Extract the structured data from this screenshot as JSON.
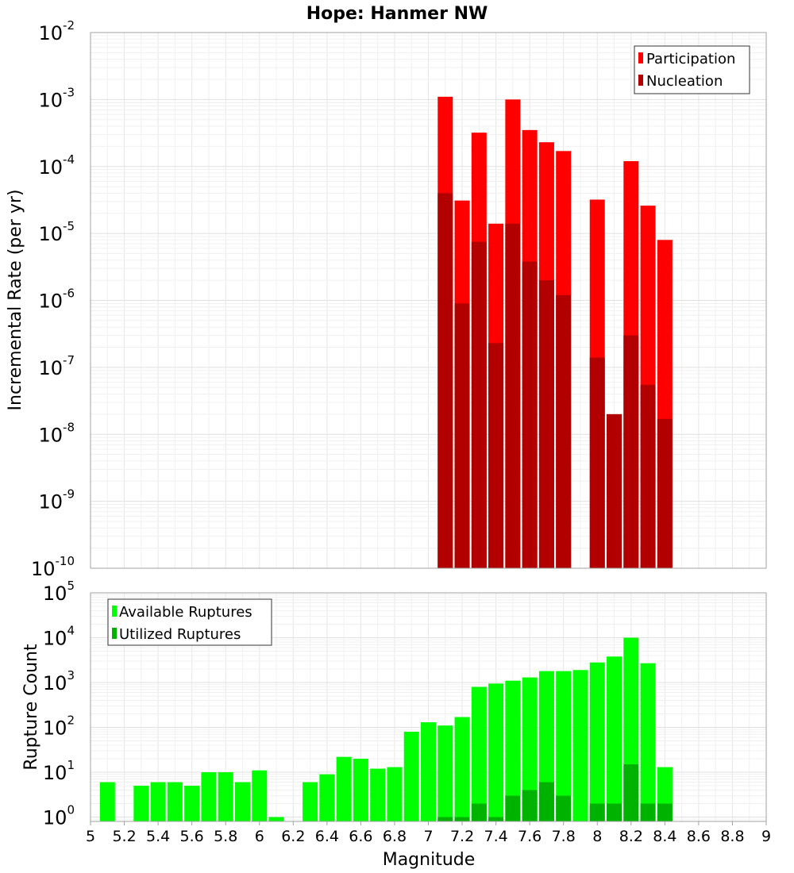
{
  "chart_data": [
    {
      "type": "bar",
      "title": "Hope: Hanmer NW",
      "ylabel": "Incremental Rate (per yr)",
      "xlabel": "",
      "xlim": [
        5,
        9
      ],
      "ylim": [
        1e-10,
        0.01
      ],
      "yscale": "log",
      "grid": true,
      "legend": "top-right",
      "x": [
        7.1,
        7.2,
        7.3,
        7.4,
        7.5,
        7.6,
        7.7,
        7.8,
        8.0,
        8.1,
        8.2,
        8.3,
        8.4
      ],
      "series": [
        {
          "name": "Participation",
          "color": "#ff0000",
          "values": [
            0.0011,
            3.1e-05,
            0.00032,
            1.4e-05,
            0.001,
            0.00035,
            0.00023,
            0.00017,
            3.2e-05,
            null,
            0.00012,
            2.6e-05,
            8e-06
          ]
        },
        {
          "name": "Nucleation",
          "color": "#b20000",
          "values": [
            4e-05,
            9e-07,
            7.5e-06,
            2.3e-07,
            1.4e-05,
            3.8e-06,
            2e-06,
            1.2e-06,
            1.4e-07,
            2e-08,
            3e-07,
            5.5e-08,
            1.7e-08
          ]
        }
      ]
    },
    {
      "type": "bar",
      "title": "",
      "ylabel": "Rupture Count",
      "xlabel": "Magnitude",
      "xlim": [
        5,
        9
      ],
      "ylim": [
        0.8,
        100000
      ],
      "yscale": "log",
      "grid": true,
      "legend": "top-left",
      "x": [
        5.1,
        5.2,
        5.3,
        5.4,
        5.5,
        5.6,
        5.7,
        5.8,
        5.9,
        6.0,
        6.1,
        6.2,
        6.3,
        6.4,
        6.5,
        6.6,
        6.7,
        6.8,
        6.9,
        7.0,
        7.1,
        7.2,
        7.3,
        7.4,
        7.5,
        7.6,
        7.7,
        7.8,
        7.9,
        8.0,
        8.1,
        8.2,
        8.3,
        8.4
      ],
      "series": [
        {
          "name": "Available Ruptures",
          "color": "#00ff00",
          "values": [
            6,
            null,
            5,
            6,
            6,
            5,
            10,
            10,
            6,
            11,
            1,
            null,
            6,
            9,
            22,
            20,
            12,
            13,
            80,
            130,
            110,
            170,
            800,
            950,
            1100,
            1300,
            1800,
            1800,
            1900,
            2800,
            3800,
            10000,
            2700,
            13
          ]
        },
        {
          "name": "Utilized Ruptures",
          "color": "#00b200",
          "values": [
            null,
            null,
            null,
            null,
            null,
            null,
            null,
            null,
            null,
            null,
            null,
            null,
            null,
            null,
            null,
            null,
            null,
            null,
            null,
            null,
            1,
            1,
            2,
            1,
            3,
            4,
            6,
            3,
            null,
            2,
            2,
            15,
            2,
            2
          ]
        }
      ]
    }
  ],
  "x_ticks": [
    "5",
    "5.2",
    "5.4",
    "5.6",
    "5.8",
    "6",
    "6.2",
    "6.4",
    "6.6",
    "6.8",
    "7",
    "7.2",
    "7.4",
    "7.6",
    "7.8",
    "8",
    "8.2",
    "8.4",
    "8.6",
    "8.8",
    "9"
  ],
  "top_y_ticks": [
    {
      "base": "10",
      "exp": "-2"
    },
    {
      "base": "10",
      "exp": "-3"
    },
    {
      "base": "10",
      "exp": "-4"
    },
    {
      "base": "10",
      "exp": "-5"
    },
    {
      "base": "10",
      "exp": "-6"
    },
    {
      "base": "10",
      "exp": "-7"
    },
    {
      "base": "10",
      "exp": "-8"
    },
    {
      "base": "10",
      "exp": "-9"
    },
    {
      "base": "10",
      "exp": "-10"
    }
  ],
  "bottom_y_ticks": [
    {
      "base": "10",
      "exp": "5"
    },
    {
      "base": "10",
      "exp": "4"
    },
    {
      "base": "10",
      "exp": "3"
    },
    {
      "base": "10",
      "exp": "2"
    },
    {
      "base": "10",
      "exp": "1"
    },
    {
      "base": "10",
      "exp": "0"
    }
  ]
}
